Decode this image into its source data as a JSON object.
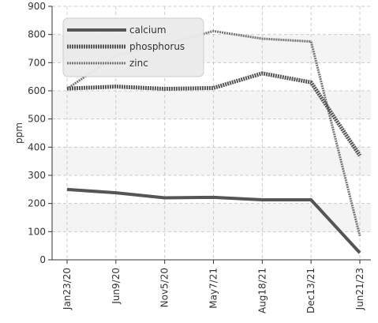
{
  "chart_data": {
    "type": "line",
    "title": "",
    "xlabel": "",
    "ylabel": "ppm",
    "categories": [
      "Jan23/20",
      "Jun9/20",
      "Nov5/20",
      "May7/21",
      "Aug18/21",
      "Dec13/21",
      "Jun21/23"
    ],
    "ylim": [
      0,
      900
    ],
    "yticks": [
      0,
      100,
      200,
      300,
      400,
      500,
      600,
      700,
      800,
      900
    ],
    "grid": true,
    "legend_position": "top-left",
    "series": [
      {
        "name": "calcium",
        "values": [
          250,
          238,
          220,
          222,
          213,
          213,
          25
        ],
        "color": "#555555",
        "style": "solid"
      },
      {
        "name": "phosphorus",
        "values": [
          608,
          615,
          607,
          610,
          662,
          630,
          370
        ],
        "color": "#555555",
        "style": "dotted-thick"
      },
      {
        "name": "zinc",
        "values": [
          607,
          725,
          765,
          812,
          785,
          775,
          85
        ],
        "color": "#777777",
        "style": "dotted-thin"
      }
    ]
  }
}
